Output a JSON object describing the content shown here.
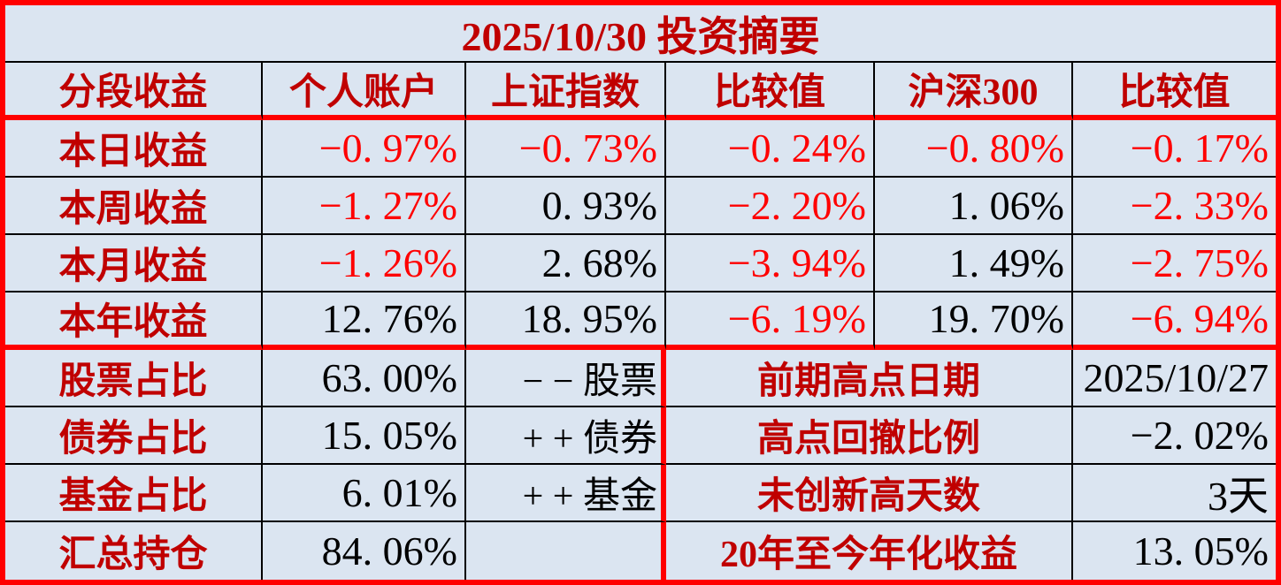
{
  "colors": {
    "background": "#dbe5f1",
    "label_dark_red": "#c00000",
    "negative_red": "#ff0000",
    "thick_border_red": "#ff0000",
    "thin_border_black": "#000000",
    "value_black": "#000000"
  },
  "table": {
    "title": "2025/10/30 投资摘要",
    "headers": [
      "分段收益",
      "个人账户",
      "上证指数",
      "比较值",
      "沪深300",
      "比较值"
    ],
    "returns": [
      {
        "label": "本日收益",
        "values": [
          "−0. 97%",
          "−0. 73%",
          "−0. 24%",
          "−0. 80%",
          "−0. 17%"
        ]
      },
      {
        "label": "本周收益",
        "values": [
          "−1. 27%",
          "0. 93%",
          "−2. 20%",
          "1. 06%",
          "−2. 33%"
        ]
      },
      {
        "label": "本月收益",
        "values": [
          "−1. 26%",
          "2. 68%",
          "−3. 94%",
          "1. 49%",
          "−2. 75%"
        ]
      },
      {
        "label": "本年收益",
        "values": [
          "12. 76%",
          "18. 95%",
          "−6. 19%",
          "19. 70%",
          "−6. 94%"
        ]
      }
    ],
    "allocation": [
      {
        "label": "股票占比",
        "value": "63. 00%",
        "sign": "− − 股票"
      },
      {
        "label": "债券占比",
        "value": "15. 05%",
        "sign": "+ + 债券"
      },
      {
        "label": "基金占比",
        "value": "6. 01%",
        "sign": "+ + 基金"
      },
      {
        "label": "汇总持仓",
        "value": "84. 06%",
        "sign": ""
      }
    ],
    "stats": [
      {
        "label": "前期高点日期",
        "value": "2025/10/27"
      },
      {
        "label": "高点回撤比例",
        "value": "−2. 02%"
      },
      {
        "label": "未创新高天数",
        "value": "3天"
      },
      {
        "label": "20年至今年化收益",
        "value": "13. 05%"
      }
    ]
  },
  "chart_data": {
    "type": "table",
    "title": "2025/10/30 投资摘要",
    "columns": [
      "分段收益",
      "个人账户",
      "上证指数",
      "比较值",
      "沪深300",
      "比较值"
    ],
    "rows": [
      [
        "本日收益",
        "-0.97%",
        "-0.73%",
        "-0.24%",
        "-0.80%",
        "-0.17%"
      ],
      [
        "本周收益",
        "-1.27%",
        "0.93%",
        "-2.20%",
        "1.06%",
        "-2.33%"
      ],
      [
        "本月收益",
        "-1.26%",
        "2.68%",
        "-3.94%",
        "1.49%",
        "-2.75%"
      ],
      [
        "本年收益",
        "12.76%",
        "18.95%",
        "-6.19%",
        "19.70%",
        "-6.94%"
      ]
    ],
    "allocation_rows": [
      [
        "股票占比",
        "63.00%",
        "- - 股票"
      ],
      [
        "债券占比",
        "15.05%",
        "+ + 债券"
      ],
      [
        "基金占比",
        "6.01%",
        "+ + 基金"
      ],
      [
        "汇总持仓",
        "84.06%",
        ""
      ]
    ],
    "stat_rows": [
      [
        "前期高点日期",
        "2025/10/27"
      ],
      [
        "高点回撤比例",
        "-2.02%"
      ],
      [
        "未创新高天数",
        "3天"
      ],
      [
        "20年至今年化收益",
        "13.05%"
      ]
    ],
    "notes": "negative values in top section shown in bright red; labels in dark red; values in black"
  }
}
